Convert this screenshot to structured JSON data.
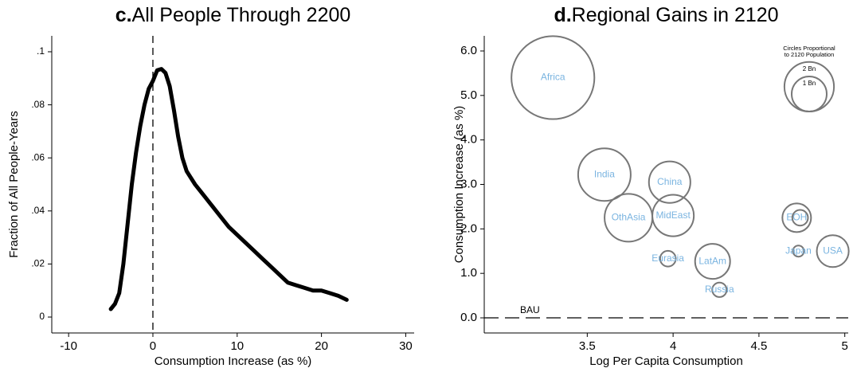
{
  "chart_data": [
    {
      "type": "line",
      "panel": "c.",
      "title": "All People Through 2200",
      "xlabel": "Consumption Increase (as %)",
      "ylabel": "Fraction of All People-Years",
      "x": [
        -5,
        -4.5,
        -4,
        -3.5,
        -3,
        -2.5,
        -2,
        -1.5,
        -1,
        -0.5,
        0,
        0.5,
        1,
        1.5,
        2,
        2.5,
        3,
        3.5,
        4,
        5,
        6,
        7,
        8,
        9,
        10,
        11,
        12,
        13,
        14,
        15,
        16,
        17,
        18,
        19,
        20,
        21,
        22,
        23
      ],
      "values": [
        0.003,
        0.005,
        0.009,
        0.02,
        0.035,
        0.05,
        0.062,
        0.072,
        0.08,
        0.086,
        0.089,
        0.093,
        0.0935,
        0.092,
        0.087,
        0.078,
        0.068,
        0.06,
        0.055,
        0.05,
        0.046,
        0.042,
        0.038,
        0.034,
        0.031,
        0.028,
        0.025,
        0.022,
        0.019,
        0.016,
        0.013,
        0.012,
        0.011,
        0.01,
        0.01,
        0.009,
        0.008,
        0.0065
      ],
      "color": "#000000",
      "vline": 0,
      "xlim": [
        -12,
        31
      ],
      "xticks": [
        -10,
        0,
        10,
        20,
        30
      ],
      "ylim": [
        -0.006,
        0.106
      ],
      "yticks": [
        0,
        {
          "value": 0.02,
          "label": ".02"
        },
        {
          "value": 0.04,
          "label": ".04"
        },
        {
          "value": 0.06,
          "label": ".06"
        },
        {
          "value": 0.08,
          "label": ".08"
        },
        {
          "value": 0.1,
          "label": ".1"
        }
      ]
    },
    {
      "type": "bubble",
      "panel": "d.",
      "title": "Regional Gains in 2120",
      "xlabel": "Log Per Capita Consumption",
      "ylabel": "Consumption Increase (as %)",
      "color": "#777777",
      "label_color": "#7ab4e0",
      "points": [
        {
          "name": "Africa",
          "x": 3.3,
          "y": 5.4,
          "size": 5.6
        },
        {
          "name": "India",
          "x": 3.6,
          "y": 3.22,
          "size": 2.25
        },
        {
          "name": "China",
          "x": 3.98,
          "y": 3.05,
          "size": 1.4
        },
        {
          "name": "OthAsia",
          "x": 3.74,
          "y": 2.25,
          "size": 1.86
        },
        {
          "name": "MidEast",
          "x": 4.0,
          "y": 2.3,
          "size": 1.4
        },
        {
          "name": "Eurasia",
          "x": 3.97,
          "y": 1.33,
          "size": 0.2
        },
        {
          "name": "LatAm",
          "x": 4.23,
          "y": 1.27,
          "size": 1.0
        },
        {
          "name": "Russia",
          "x": 4.27,
          "y": 0.63,
          "size": 0.17
        },
        {
          "name": "EOH",
          "x": 4.72,
          "y": 2.25,
          "size": 0.67
        },
        {
          "name": null,
          "x": 4.74,
          "y": 2.25,
          "size": 0.2
        },
        {
          "name": "Japan",
          "x": 4.73,
          "y": 1.5,
          "size": 0.1
        },
        {
          "name": "USA",
          "x": 4.93,
          "y": 1.5,
          "size": 0.83
        }
      ],
      "hline": 0,
      "hline_label": "BAU",
      "size_legend_title": [
        "Circles Proportional",
        "to 2120 Population"
      ],
      "size_legend": [
        {
          "value": 2,
          "label": "2 Bn"
        },
        {
          "value": 1,
          "label": "1 Bn"
        }
      ],
      "xlim": [
        2.9,
        5.02
      ],
      "xticks": [
        3.5,
        4,
        4.5,
        5
      ],
      "ylim": [
        -0.34,
        6.34
      ],
      "yticks": [
        {
          "value": 0,
          "label": "0.0"
        },
        {
          "value": 1,
          "label": "1.0"
        },
        {
          "value": 2,
          "label": "2.0"
        },
        {
          "value": 3,
          "label": "3.0"
        },
        {
          "value": 4,
          "label": "4.0"
        },
        {
          "value": 5,
          "label": "5.0"
        },
        {
          "value": 6,
          "label": "6.0"
        }
      ]
    }
  ]
}
